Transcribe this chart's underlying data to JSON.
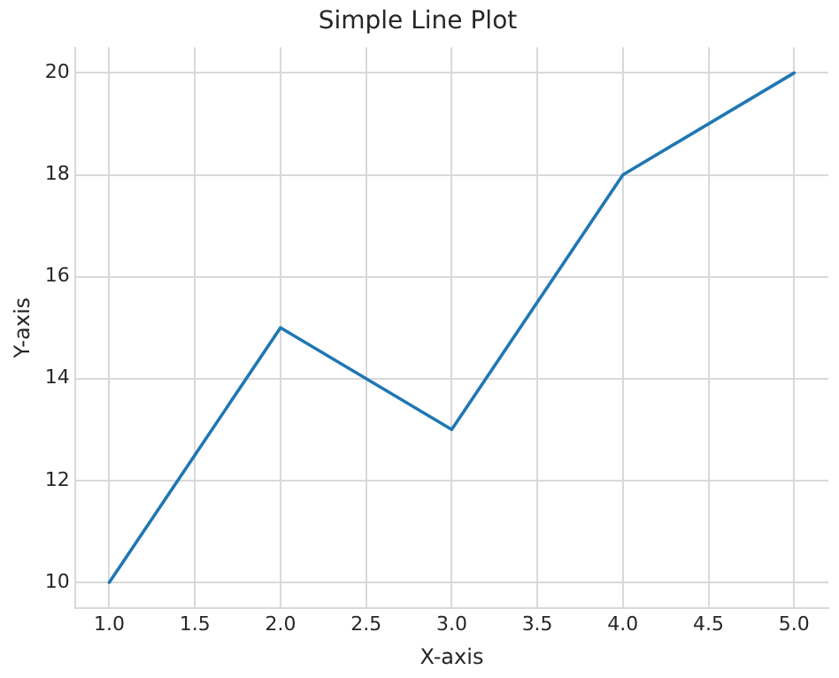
{
  "chart_data": {
    "type": "line",
    "title": "Simple Line Plot",
    "xlabel": "X-axis",
    "ylabel": "Y-axis",
    "x": [
      1,
      2,
      3,
      4,
      5
    ],
    "series": [
      {
        "color": "#1f77b4",
        "values": [
          10,
          15,
          13,
          18,
          20
        ]
      }
    ],
    "xlim": [
      0.8,
      5.2
    ],
    "xticks": [
      {
        "value": 1,
        "label": "1.0"
      },
      {
        "value": 1.5,
        "label": "1.5"
      },
      {
        "value": 2,
        "label": "2.0"
      },
      {
        "value": 2.5,
        "label": "2.5"
      },
      {
        "value": 3,
        "label": "3.0"
      },
      {
        "value": 3.5,
        "label": "3.5"
      },
      {
        "value": 4,
        "label": "4.0"
      },
      {
        "value": 4.5,
        "label": "4.5"
      },
      {
        "value": 5,
        "label": "5.0"
      }
    ],
    "ylim": [
      9.5,
      20.5
    ],
    "yticks": [
      10,
      12,
      14,
      16,
      18,
      20
    ],
    "grid": true,
    "legend": false,
    "marker": "none",
    "line_style": "solid"
  }
}
